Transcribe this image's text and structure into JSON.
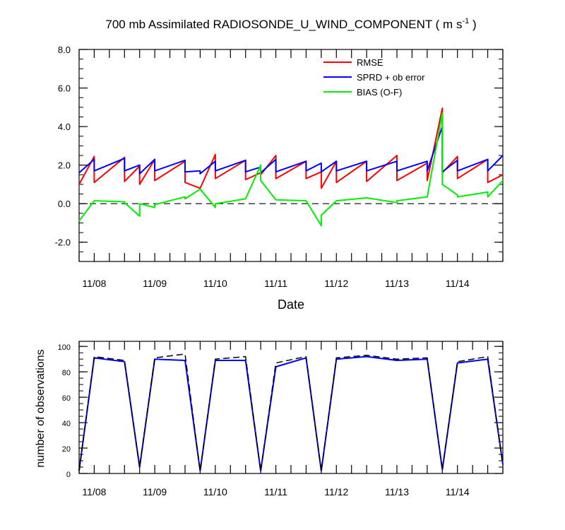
{
  "chart_data": [
    {
      "type": "line",
      "title": "700 mb Assimilated RADIOSONDE_U_WIND_COMPONENT ( m s",
      "title_superscript": "-1",
      "title_close": " )",
      "xlabel": "Date",
      "ylabel": "",
      "ylim": [
        -3.0,
        8.0
      ],
      "yticks": [
        "-2.0",
        "0.0",
        "2.0",
        "4.0",
        "6.0",
        "8.0"
      ],
      "ytick_values": [
        -2,
        0,
        2,
        4,
        6,
        8
      ],
      "xlim": [
        0.0,
        7.0
      ],
      "xticks": [
        "11/08",
        "11/09",
        "11/10",
        "11/11",
        "11/12",
        "11/13",
        "11/14"
      ],
      "xtick_values": [
        0.25,
        1.25,
        2.25,
        3.25,
        4.25,
        5.25,
        6.25
      ],
      "zero_line": true,
      "legend_position": "top-right",
      "series": [
        {
          "name": "RMSE",
          "color": "#ff0000",
          "x": [
            0,
            0.25,
            0.25,
            0.75,
            0.75,
            1.0,
            1.0,
            1.25,
            1.25,
            1.75,
            1.75,
            2.0,
            2.0,
            2.25,
            2.25,
            2.75,
            2.75,
            3.0,
            3.0,
            3.25,
            3.25,
            3.75,
            3.75,
            4.0,
            4.0,
            4.25,
            4.25,
            4.75,
            4.75,
            5.25,
            5.25,
            5.75,
            5.75,
            6.0,
            6.0,
            6.25,
            6.25,
            6.75,
            6.75,
            7.0
          ],
          "values": [
            1.0,
            2.45,
            1.1,
            2.4,
            1.15,
            1.95,
            1.0,
            2.3,
            1.2,
            2.2,
            1.1,
            0.8,
            0.8,
            2.55,
            1.3,
            2.25,
            1.25,
            1.6,
            1.5,
            2.5,
            1.3,
            2.2,
            1.3,
            1.65,
            0.8,
            2.2,
            1.1,
            2.2,
            1.15,
            2.5,
            1.2,
            2.1,
            1.2,
            4.95,
            1.6,
            2.45,
            1.3,
            2.3,
            1.1,
            1.5
          ]
        },
        {
          "name": "SPRD + ob error",
          "color": "#0000ff",
          "x": [
            0,
            0.25,
            0.25,
            0.75,
            0.75,
            1.0,
            1.0,
            1.25,
            1.25,
            1.75,
            1.75,
            2.0,
            2.0,
            2.25,
            2.25,
            2.75,
            2.75,
            3.0,
            3.0,
            3.25,
            3.25,
            3.75,
            3.75,
            4.0,
            4.0,
            4.25,
            4.25,
            4.75,
            4.75,
            5.25,
            5.25,
            5.75,
            5.75,
            6.0,
            6.0,
            6.25,
            6.25,
            6.75,
            6.75,
            7.0
          ],
          "values": [
            1.6,
            2.3,
            1.7,
            2.35,
            1.7,
            2.0,
            1.55,
            2.3,
            1.7,
            2.25,
            1.65,
            1.7,
            1.55,
            2.2,
            1.7,
            2.25,
            1.65,
            1.9,
            1.6,
            2.3,
            1.65,
            2.2,
            1.7,
            2.1,
            1.65,
            2.2,
            1.7,
            2.2,
            1.7,
            2.2,
            1.7,
            2.2,
            1.7,
            4.0,
            1.65,
            2.25,
            1.7,
            2.3,
            1.7,
            2.5
          ]
        },
        {
          "name": "BIAS (O-F)",
          "color": "#00ee00",
          "x": [
            0,
            0.25,
            0.25,
            0.75,
            0.75,
            1.0,
            1.0,
            1.25,
            1.25,
            1.75,
            1.75,
            2.0,
            2.0,
            2.25,
            2.25,
            2.75,
            2.75,
            3.0,
            3.0,
            3.25,
            3.25,
            3.75,
            3.75,
            4.0,
            4.0,
            4.25,
            4.25,
            4.75,
            4.75,
            5.25,
            5.25,
            5.75,
            5.75,
            6.0,
            6.0,
            6.25,
            6.25,
            6.75,
            6.75,
            7.0
          ],
          "values": [
            -0.9,
            0.15,
            0.15,
            0.1,
            0.05,
            -0.65,
            0.0,
            -0.2,
            -0.05,
            0.35,
            0.25,
            0.75,
            0.75,
            -0.2,
            0.0,
            0.25,
            0.25,
            2.0,
            1.2,
            0.2,
            0.2,
            0.15,
            0.15,
            -1.15,
            -0.6,
            0.15,
            0.15,
            0.3,
            0.3,
            0.05,
            0.15,
            0.35,
            0.35,
            4.7,
            1.0,
            0.45,
            0.35,
            0.6,
            0.35,
            1.2
          ]
        }
      ]
    },
    {
      "type": "line",
      "title": "",
      "xlabel": "",
      "ylabel": "number of observations",
      "ylim": [
        0,
        104
      ],
      "yticks": [
        "0",
        "20",
        "40",
        "60",
        "80",
        "100"
      ],
      "ytick_values": [
        0,
        20,
        40,
        60,
        80,
        100
      ],
      "xlim": [
        0.0,
        7.0
      ],
      "xticks": [
        "11/08",
        "11/09",
        "11/10",
        "11/11",
        "11/12",
        "11/13",
        "11/14"
      ],
      "xtick_values": [
        0.25,
        1.25,
        2.25,
        3.25,
        4.25,
        5.25,
        6.25
      ],
      "series": [
        {
          "name": "",
          "style": "solid",
          "color": "#0000ff",
          "x": [
            0,
            0.25,
            0.75,
            1.0,
            1.25,
            1.75,
            2.0,
            2.25,
            2.75,
            3.0,
            3.25,
            3.75,
            4.0,
            4.25,
            4.75,
            5.25,
            5.75,
            6.0,
            6.25,
            6.75,
            7.0
          ],
          "values": [
            2,
            91,
            88,
            5,
            90,
            89,
            2,
            89,
            89,
            2,
            84,
            91,
            2,
            90,
            92,
            89,
            90,
            3,
            87,
            90,
            7
          ]
        },
        {
          "name": "",
          "style": "dashed",
          "color": "#000000",
          "x": [
            0,
            0.25,
            0.75,
            1.0,
            1.25,
            1.75,
            2.0,
            2.25,
            2.75,
            3.0,
            3.25,
            3.75,
            4.0,
            4.25,
            4.75,
            5.25,
            5.75,
            6.0,
            6.25,
            6.75,
            7.0
          ],
          "values": [
            2,
            92,
            89,
            5,
            91,
            94,
            2,
            90,
            92,
            2,
            87,
            92,
            2,
            91,
            93,
            90,
            91,
            3,
            88,
            92,
            7
          ]
        }
      ]
    }
  ]
}
